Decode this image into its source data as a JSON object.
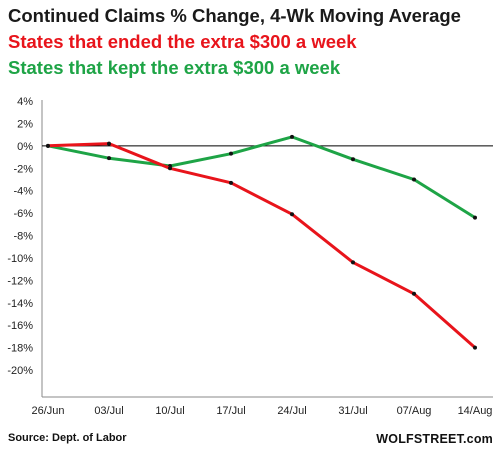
{
  "chart_data": {
    "type": "line",
    "title": "Continued Claims % Change, 4-Wk Moving Average",
    "categories": [
      "26/Jun",
      "03/Jul",
      "10/Jul",
      "17/Jul",
      "24/Jul",
      "31/Jul",
      "07/Aug",
      "14/Aug"
    ],
    "series": [
      {
        "name": "States that ended the extra $300 a week",
        "color": "#e8141b",
        "values": [
          0.0,
          0.2,
          -2.0,
          -3.3,
          -6.1,
          -10.4,
          -13.2,
          -18.0
        ]
      },
      {
        "name": "States that kept the extra $300 a week",
        "color": "#1ea446",
        "values": [
          0.0,
          -1.1,
          -1.8,
          -0.7,
          0.8,
          -1.2,
          -3.0,
          -6.4
        ]
      }
    ],
    "yticks": [
      "4%",
      "2%",
      "0%",
      "-2%",
      "-4%",
      "-6%",
      "-8%",
      "-10%",
      "-12%",
      "-14%",
      "-16%",
      "-18%",
      "-20%"
    ],
    "ylim": [
      -20,
      4
    ],
    "grid": false,
    "zero_line": true
  },
  "footer": {
    "source": "Source: Dept. of Labor",
    "brand": "WOLFSTREET.com"
  }
}
